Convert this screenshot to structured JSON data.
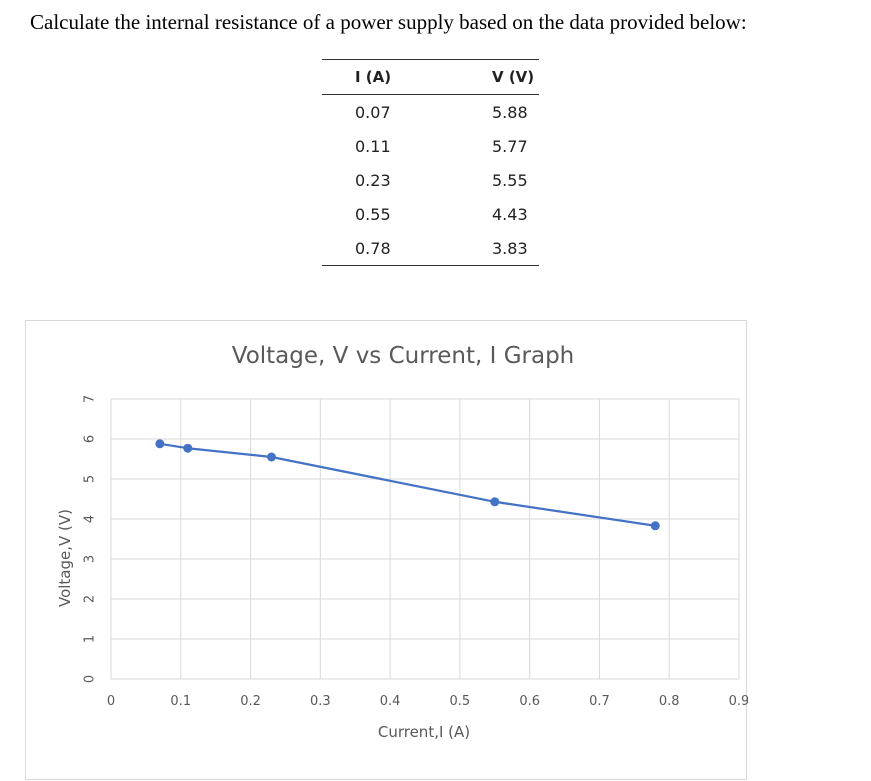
{
  "question": "Calculate the internal resistance of a power supply based on the data provided below:",
  "table": {
    "headers": [
      "I (A)",
      "V (V)"
    ],
    "rows": [
      [
        "0.07",
        "5.88"
      ],
      [
        "0.11",
        "5.77"
      ],
      [
        "0.23",
        "5.55"
      ],
      [
        "0.55",
        "4.43"
      ],
      [
        "0.78",
        "3.83"
      ]
    ]
  },
  "chart_data": {
    "type": "line",
    "title": "Voltage, V vs Current, I Graph",
    "xlabel": "Current,I (A)",
    "ylabel": "Voltage,V (V)",
    "xlim": [
      0,
      0.9
    ],
    "ylim": [
      0,
      7
    ],
    "xticks": [
      "0",
      "0.1",
      "0.2",
      "0.3",
      "0.4",
      "0.5",
      "0.6",
      "0.7",
      "0.8",
      "0.9"
    ],
    "yticks": [
      "0",
      "1",
      "2",
      "3",
      "4",
      "5",
      "6",
      "7"
    ],
    "grid": true,
    "series": [
      {
        "x": [
          0.07,
          0.11,
          0.23,
          0.55,
          0.78
        ],
        "y": [
          5.88,
          5.77,
          5.55,
          4.43,
          3.83
        ],
        "color": "#4472c4"
      }
    ]
  }
}
